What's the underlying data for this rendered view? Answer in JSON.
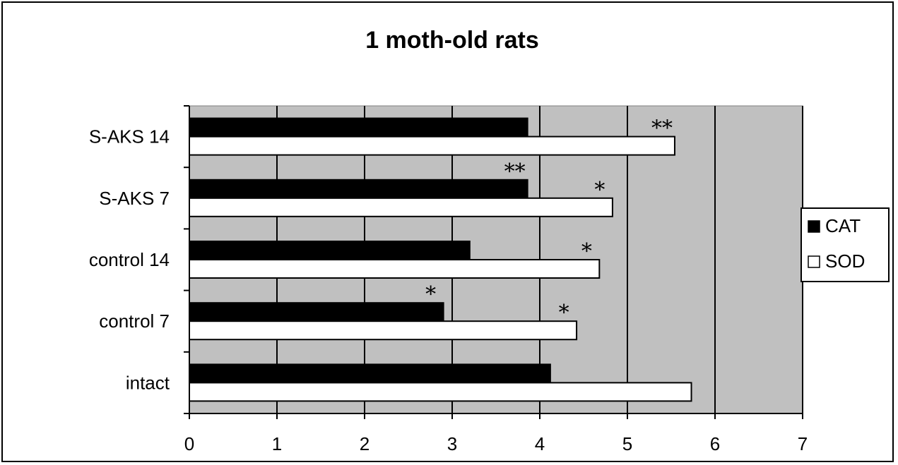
{
  "chart_data": {
    "type": "bar",
    "orientation": "horizontal",
    "title": "1 moth-old rats",
    "xlabel": "",
    "ylabel": "",
    "categories": [
      "intact",
      "control 7",
      "control 14",
      "S-AKS 7",
      "S-AKS 14"
    ],
    "series": [
      {
        "name": "CAT",
        "color": "#000000",
        "values": [
          4.12,
          2.9,
          3.2,
          3.86,
          3.86
        ]
      },
      {
        "name": "SOD",
        "color": "#ffffff",
        "values": [
          5.73,
          4.42,
          4.68,
          4.83,
          5.54
        ]
      }
    ],
    "xlim": [
      0,
      7
    ],
    "xticks": [
      "0",
      "1",
      "2",
      "3",
      "4",
      "5",
      "6",
      "7"
    ],
    "grid": "vertical gridlines",
    "plot_background": "#c0c0c0",
    "legend_position": "right",
    "annotations": [
      {
        "text": "**",
        "category": "S-AKS 14",
        "series": "SOD"
      },
      {
        "text": "**",
        "category": "S-AKS 7",
        "series": "CAT"
      },
      {
        "text": "*",
        "category": "S-AKS 7",
        "series": "SOD"
      },
      {
        "text": "*",
        "category": "control 14",
        "series": "SOD"
      },
      {
        "text": "*",
        "category": "control 7",
        "series": "CAT"
      },
      {
        "text": "*",
        "category": "control 7",
        "series": "SOD"
      }
    ]
  }
}
